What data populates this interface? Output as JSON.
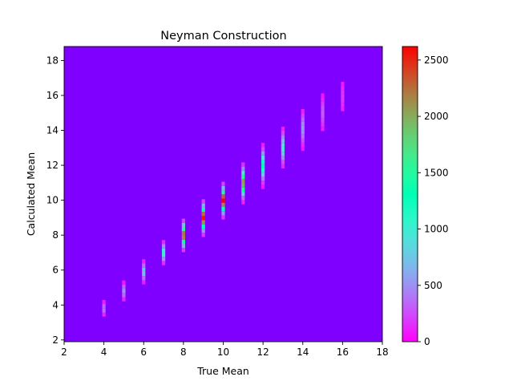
{
  "chart_data": {
    "type": "heatmap",
    "title": "Neyman Construction",
    "xlabel": "True Mean",
    "ylabel": "Calculated Mean",
    "xlim": [
      2,
      18
    ],
    "ylim": [
      1.9,
      18.8
    ],
    "xticks": [
      "2",
      "4",
      "6",
      "8",
      "10",
      "12",
      "14",
      "16",
      "18"
    ],
    "yticks": [
      "2",
      "4",
      "6",
      "8",
      "10",
      "12",
      "14",
      "16",
      "18"
    ],
    "colormap": "rainbow",
    "colorbar": {
      "min": 0,
      "max": 2620,
      "ticks": [
        "0",
        "500",
        "1000",
        "1500",
        "2000",
        "2500"
      ]
    },
    "bin_width": 0.24,
    "columns": [
      {
        "true_mean": 4,
        "peak_count": 400,
        "center": 3.8,
        "sigma": 0.22
      },
      {
        "true_mean": 5,
        "peak_count": 520,
        "center": 4.8,
        "sigma": 0.26
      },
      {
        "true_mean": 6,
        "peak_count": 760,
        "center": 5.9,
        "sigma": 0.3
      },
      {
        "true_mean": 7,
        "peak_count": 1020,
        "center": 7.0,
        "sigma": 0.3
      },
      {
        "true_mean": 8,
        "peak_count": 2300,
        "center": 8.0,
        "sigma": 0.38
      },
      {
        "true_mean": 9,
        "peak_count": 2550,
        "center": 9.0,
        "sigma": 0.42
      },
      {
        "true_mean": 10,
        "peak_count": 2620,
        "center": 10.0,
        "sigma": 0.42
      },
      {
        "true_mean": 11,
        "peak_count": 2100,
        "center": 11.0,
        "sigma": 0.46
      },
      {
        "true_mean": 12,
        "peak_count": 1300,
        "center": 12.0,
        "sigma": 0.5
      },
      {
        "true_mean": 13,
        "peak_count": 900,
        "center": 13.0,
        "sigma": 0.52
      },
      {
        "true_mean": 14,
        "peak_count": 520,
        "center": 14.1,
        "sigma": 0.55
      },
      {
        "true_mean": 15,
        "peak_count": 300,
        "center": 15.0,
        "sigma": 0.55
      },
      {
        "true_mean": 16,
        "peak_count": 180,
        "center": 15.9,
        "sigma": 0.55
      }
    ]
  }
}
